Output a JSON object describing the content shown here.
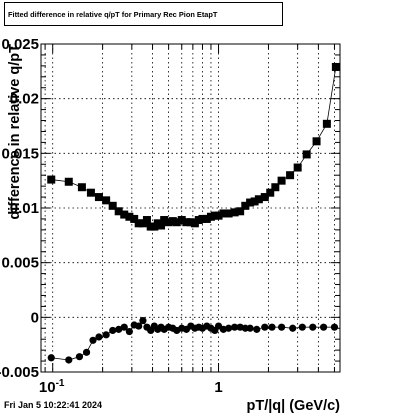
{
  "title": "Fitted difference in relative q/pT for Primary Rec Pion EtapT",
  "datestamp": "Fri Jan  5 10:22:41 2024",
  "chart_data": {
    "type": "scatter",
    "title": "Fitted difference in relative q/pT for Primary Rec Pion EtapT",
    "xlabel": "pT/|q| (GeV/c)",
    "ylabel": "difference in relative q/pT",
    "xscale": "log",
    "xlim": [
      0.085,
      5.4
    ],
    "ylim": [
      -0.005,
      0.025
    ],
    "grid": true,
    "x_ticks": [
      {
        "value": 0.1,
        "label": "10^-1"
      },
      {
        "value": 1,
        "label": "1"
      }
    ],
    "y_ticks": [
      {
        "value": -0.005,
        "label": "-0.005"
      },
      {
        "value": 0,
        "label": "0"
      },
      {
        "value": 0.005,
        "label": "0.005"
      },
      {
        "value": 0.01,
        "label": "0.01"
      },
      {
        "value": 0.015,
        "label": "0.015"
      },
      {
        "value": 0.02,
        "label": "0.02"
      },
      {
        "value": 0.025,
        "label": "0.025"
      }
    ],
    "series": [
      {
        "marker": "square",
        "x": [
          0.098,
          0.125,
          0.15,
          0.17,
          0.19,
          0.21,
          0.23,
          0.25,
          0.27,
          0.29,
          0.31,
          0.33,
          0.35,
          0.37,
          0.39,
          0.41,
          0.43,
          0.45,
          0.47,
          0.5,
          0.53,
          0.56,
          0.6,
          0.64,
          0.68,
          0.72,
          0.76,
          0.8,
          0.85,
          0.9,
          0.95,
          1.0,
          1.07,
          1.15,
          1.25,
          1.35,
          1.45,
          1.55,
          1.65,
          1.75,
          1.9,
          2.05,
          2.2,
          2.4,
          2.7,
          3.0,
          3.4,
          3.9,
          4.5,
          5.1
        ],
        "y": [
          0.0126,
          0.0124,
          0.0119,
          0.0114,
          0.011,
          0.0107,
          0.0102,
          0.0097,
          0.0094,
          0.0092,
          0.009,
          0.0086,
          0.0086,
          0.0089,
          0.0083,
          0.0083,
          0.0086,
          0.0084,
          0.0089,
          0.0087,
          0.0088,
          0.0087,
          0.0089,
          0.0087,
          0.0087,
          0.0086,
          0.0089,
          0.009,
          0.009,
          0.0092,
          0.0093,
          0.0093,
          0.0095,
          0.0095,
          0.0096,
          0.0097,
          0.0102,
          0.0105,
          0.0106,
          0.0108,
          0.011,
          0.0114,
          0.0119,
          0.0125,
          0.013,
          0.0137,
          0.0149,
          0.0161,
          0.0177,
          0.0229
        ]
      },
      {
        "marker": "circle",
        "x": [
          0.098,
          0.125,
          0.145,
          0.16,
          0.175,
          0.19,
          0.21,
          0.23,
          0.25,
          0.27,
          0.29,
          0.31,
          0.33,
          0.35,
          0.37,
          0.39,
          0.41,
          0.43,
          0.45,
          0.47,
          0.5,
          0.53,
          0.56,
          0.6,
          0.64,
          0.68,
          0.72,
          0.76,
          0.8,
          0.85,
          0.9,
          0.95,
          1.0,
          1.07,
          1.15,
          1.25,
          1.35,
          1.45,
          1.55,
          1.7,
          1.9,
          2.1,
          2.4,
          2.8,
          3.2,
          3.7,
          4.3,
          5.0
        ],
        "y": [
          -0.0037,
          -0.0039,
          -0.0036,
          -0.0032,
          -0.0021,
          -0.0018,
          -0.0016,
          -0.0012,
          -0.0011,
          -0.0009,
          -0.0013,
          -0.0007,
          -0.0008,
          -0.0003,
          -0.0009,
          -0.0012,
          -0.0008,
          -0.0011,
          -0.0009,
          -0.0011,
          -0.0009,
          -0.001,
          -0.0012,
          -0.001,
          -0.0011,
          -0.0008,
          -0.001,
          -0.0009,
          -0.001,
          -0.0008,
          -0.001,
          -0.0012,
          -0.0008,
          -0.0011,
          -0.001,
          -0.0009,
          -0.0009,
          -0.001,
          -0.001,
          -0.0011,
          -0.0009,
          -0.0009,
          -0.0009,
          -0.001,
          -0.0009,
          -0.0009,
          -0.0009,
          -0.0009
        ]
      }
    ]
  }
}
